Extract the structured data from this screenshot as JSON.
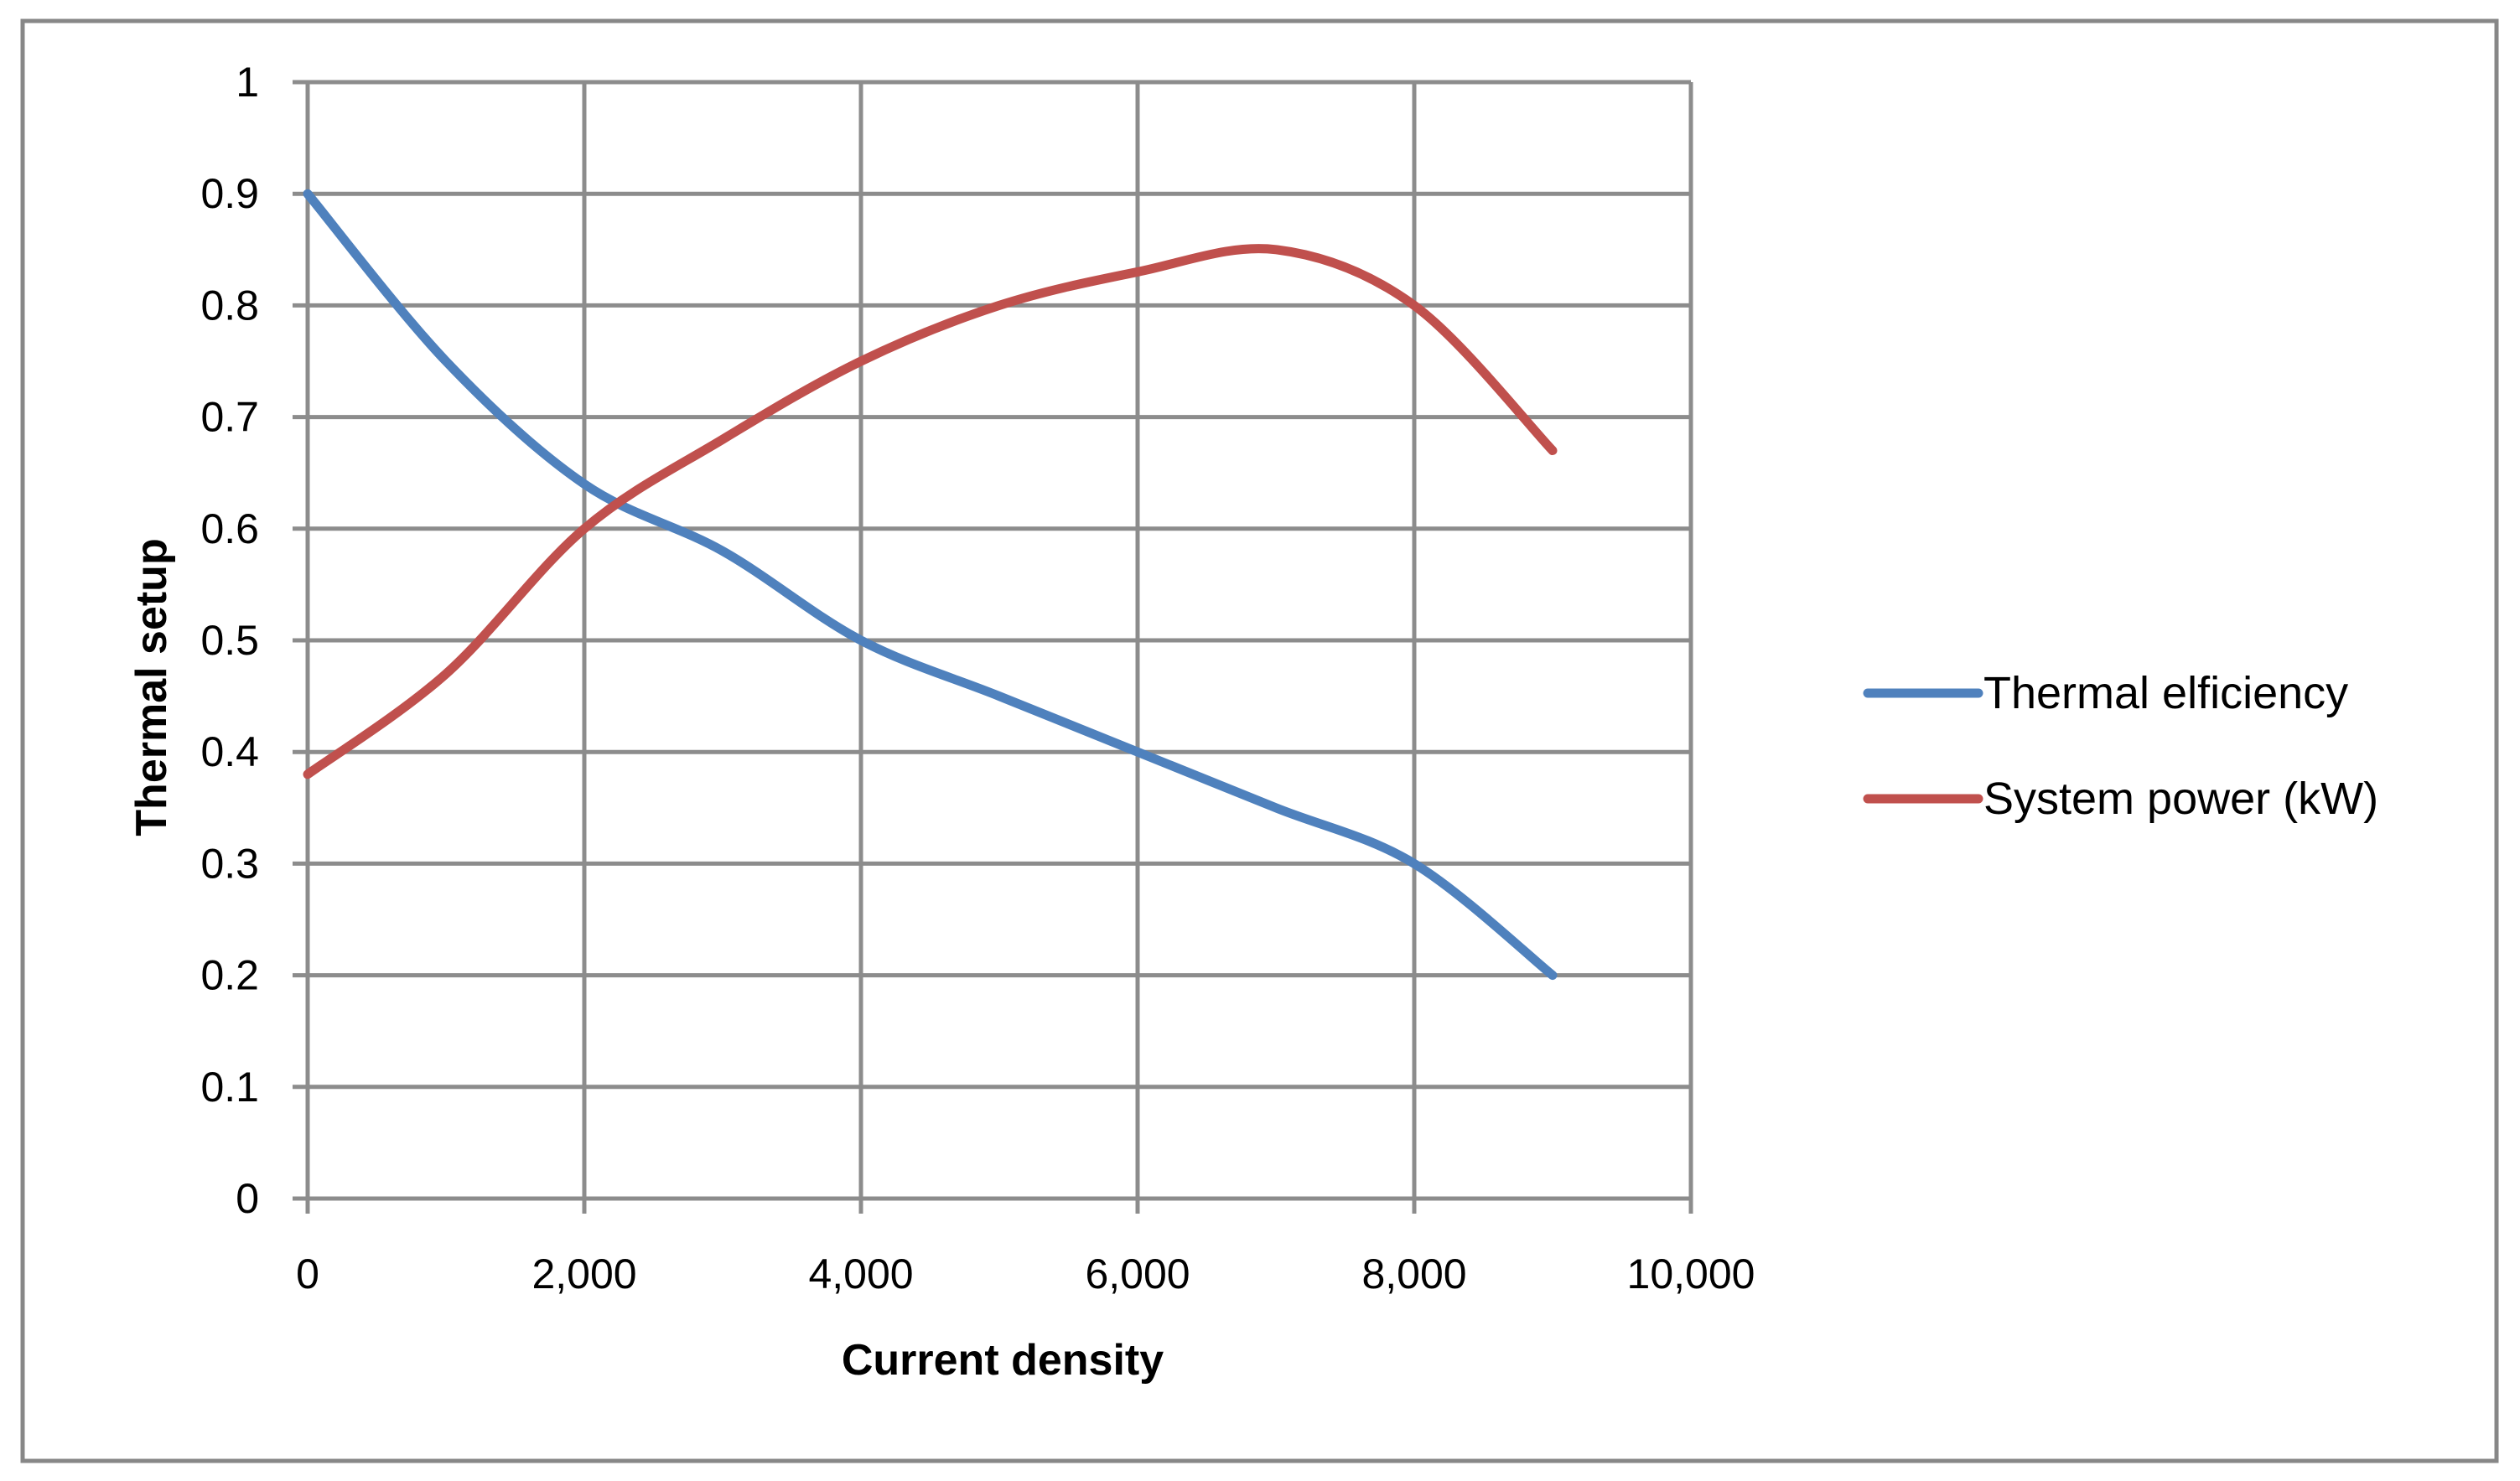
{
  "chart_data": {
    "type": "line",
    "title": "",
    "xlabel": "Current density",
    "ylabel": "Thermal setup",
    "xlim": [
      0,
      10000
    ],
    "ylim": [
      0,
      1
    ],
    "x_ticks": [
      0,
      2000,
      4000,
      6000,
      8000,
      10000
    ],
    "x_tick_labels": [
      "0",
      "2,000",
      "4,000",
      "6,000",
      "8,000",
      "10,000"
    ],
    "y_ticks": [
      0,
      0.1,
      0.2,
      0.3,
      0.4,
      0.5,
      0.6,
      0.7,
      0.8,
      0.9,
      1
    ],
    "y_tick_labels": [
      "0",
      "0.1",
      "0.2",
      "0.3",
      "0.4",
      "0.5",
      "0.6",
      "0.7",
      "0.8",
      "0.9",
      "1"
    ],
    "grid": true,
    "legend_position": "right",
    "x": [
      0,
      1000,
      2000,
      3000,
      4000,
      5000,
      6000,
      7000,
      8000,
      9000
    ],
    "series": [
      {
        "name": "Thermal elficiency",
        "color": "#4f81bd",
        "values": [
          0.9,
          0.75,
          0.64,
          0.58,
          0.5,
          0.45,
          0.4,
          0.35,
          0.3,
          0.2
        ]
      },
      {
        "name": "System power (kW)",
        "color": "#c0504d",
        "values": [
          0.38,
          0.47,
          0.6,
          0.68,
          0.75,
          0.8,
          0.83,
          0.85,
          0.8,
          0.67
        ]
      }
    ]
  }
}
